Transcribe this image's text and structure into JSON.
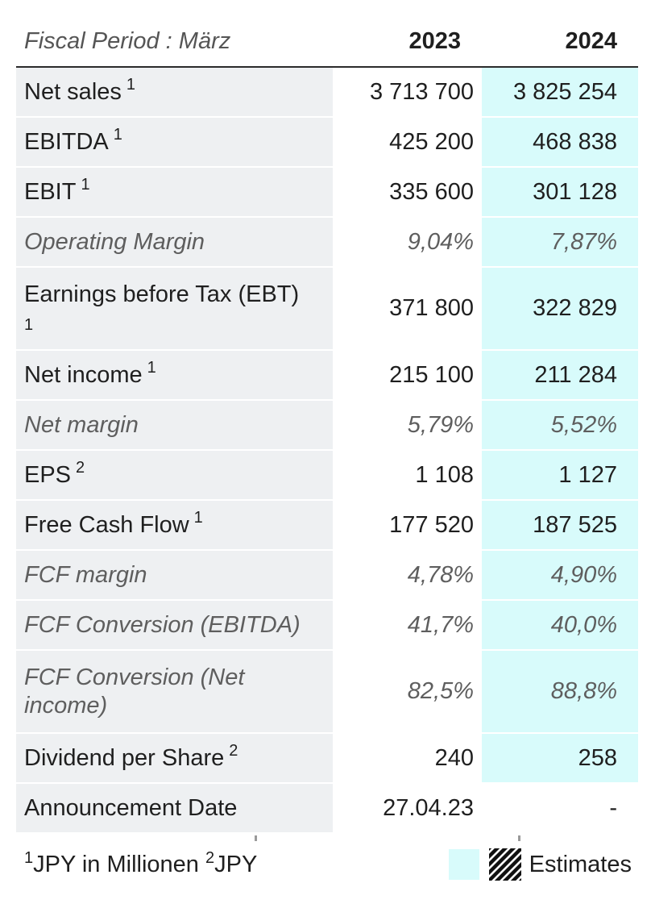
{
  "table": {
    "header": {
      "period_label": "Fiscal Period : März",
      "years": [
        "2023",
        "2024"
      ]
    },
    "rows": [
      {
        "label": "Net sales",
        "note": "1",
        "v2023": "3 713 700",
        "v2024": "3 825 254"
      },
      {
        "label": "EBITDA",
        "note": "1",
        "v2023": "425 200",
        "v2024": "468 838"
      },
      {
        "label": "EBIT",
        "note": "1",
        "v2023": "335 600",
        "v2024": "301 128"
      },
      {
        "label": "Operating Margin",
        "note": "",
        "v2023": "9,04%",
        "v2024": "7,87%"
      },
      {
        "label": "Earnings before Tax (EBT)",
        "note": "1",
        "v2023": "371 800",
        "v2024": "322 829"
      },
      {
        "label": "Net income",
        "note": "1",
        "v2023": "215 100",
        "v2024": "211 284"
      },
      {
        "label": "Net margin",
        "note": "",
        "v2023": "5,79%",
        "v2024": "5,52%"
      },
      {
        "label": "EPS",
        "note": "2",
        "v2023": "1 108",
        "v2024": "1 127"
      },
      {
        "label": "Free Cash Flow",
        "note": "1",
        "v2023": "177 520",
        "v2024": "187 525"
      },
      {
        "label": "FCF margin",
        "note": "",
        "v2023": "4,78%",
        "v2024": "4,90%"
      },
      {
        "label": "FCF Conversion (EBITDA)",
        "note": "",
        "v2023": "41,7%",
        "v2024": "40,0%"
      },
      {
        "label": "FCF Conversion (Net income)",
        "note": "",
        "v2023": "82,5%",
        "v2024": "88,8%"
      },
      {
        "label": "Dividend per Share",
        "note": "2",
        "v2023": "240",
        "v2024": "258"
      },
      {
        "label": "Announcement Date",
        "note": "",
        "v2023": "27.04.23",
        "v2024": "-"
      }
    ]
  },
  "footer": {
    "note1_marker": "1",
    "note1_text": "JPY in Millionen",
    "note2_marker": "2",
    "note2_text": "JPY",
    "legend_label": "Estimates"
  },
  "colors": {
    "estimate_bg": "#d8fbfb",
    "label_bg": "#eef0f2"
  }
}
